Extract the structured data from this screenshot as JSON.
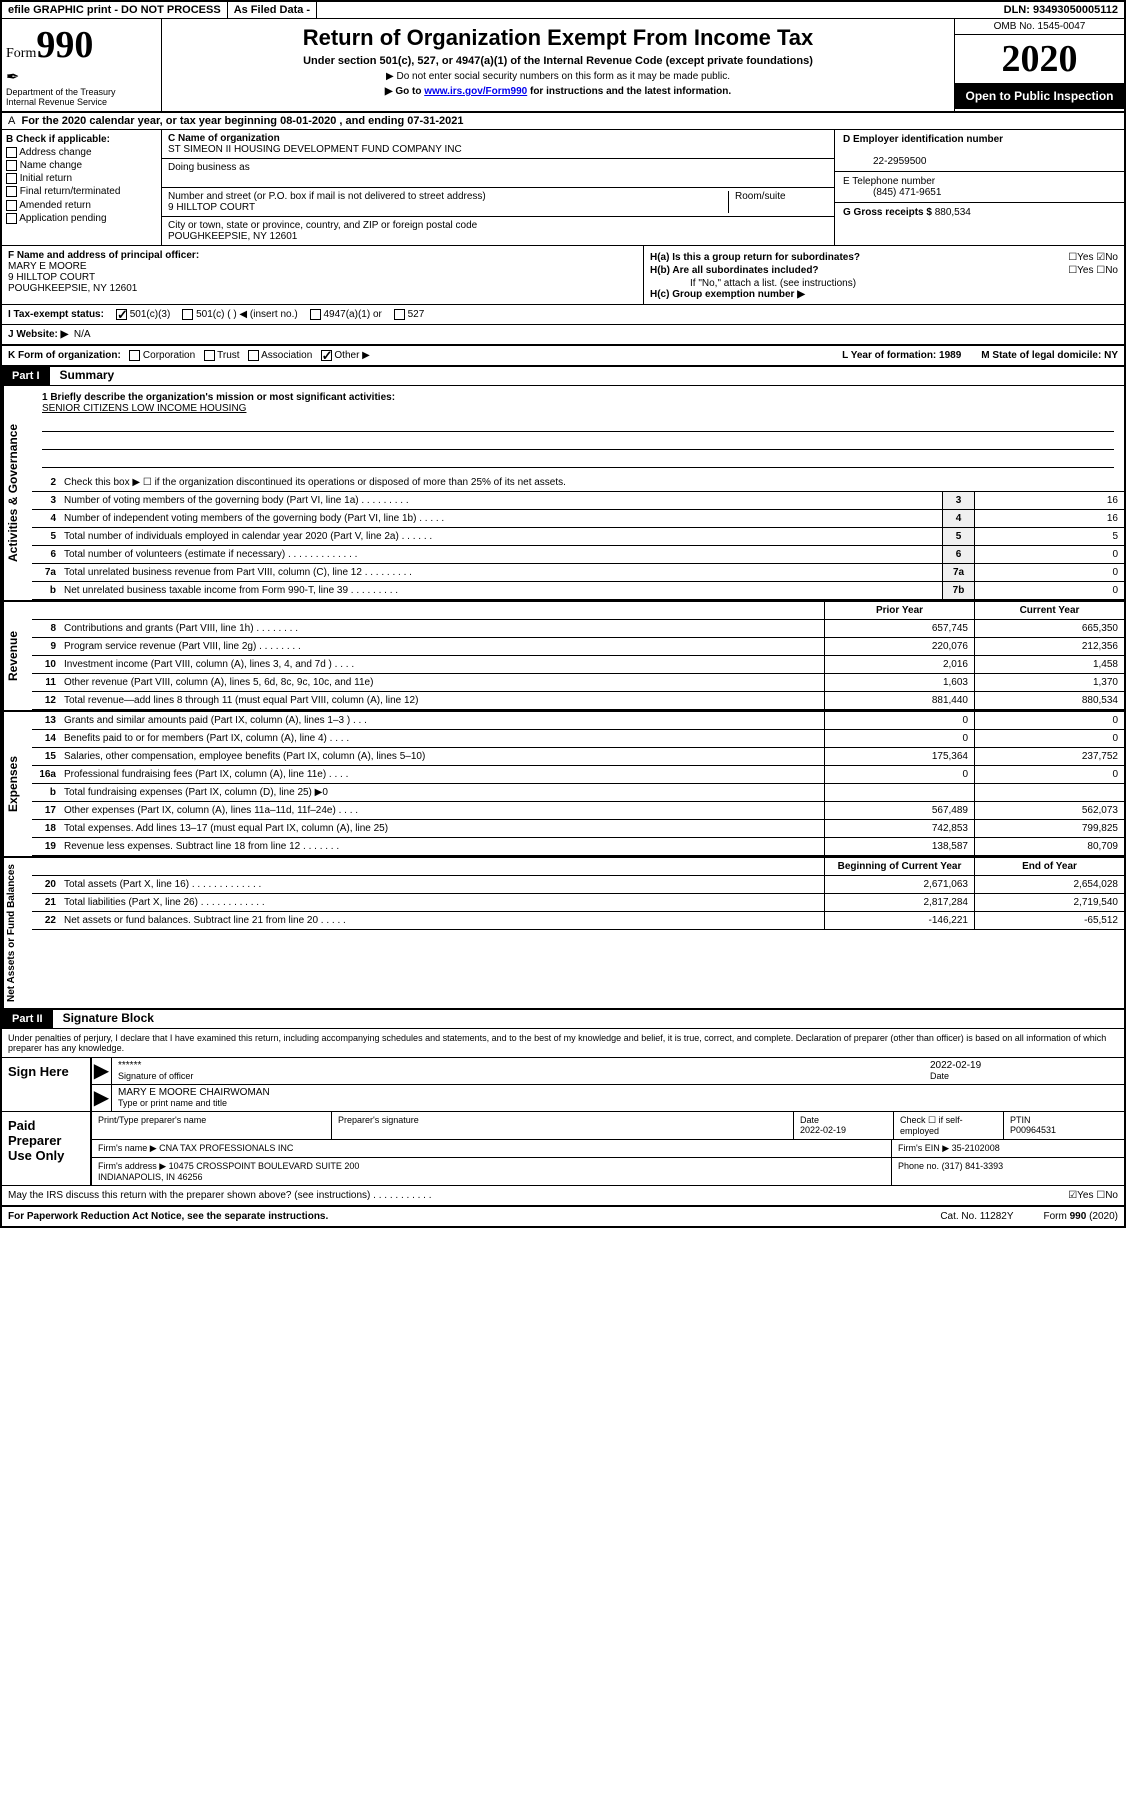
{
  "topbar": {
    "efile": "efile GRAPHIC print - DO NOT PROCESS",
    "asfiled": "As Filed Data -",
    "dln": "DLN: 93493050005112"
  },
  "header": {
    "formword": "Form",
    "formnum": "990",
    "dept": "Department of the Treasury",
    "irs": "Internal Revenue Service",
    "title": "Return of Organization Exempt From Income Tax",
    "sub": "Under section 501(c), 527, or 4947(a)(1) of the Internal Revenue Code (except private foundations)",
    "note1": "▶ Do not enter social security numbers on this form as it may be made public.",
    "note2_pre": "▶ Go to ",
    "note2_link": "www.irs.gov/Form990",
    "note2_post": " for instructions and the latest information.",
    "omb": "OMB No. 1545-0047",
    "year": "2020",
    "openpub": "Open to Public Inspection"
  },
  "rowA": {
    "label": "A",
    "text": "For the 2020 calendar year, or tax year beginning 08-01-2020   , and ending 07-31-2021"
  },
  "colB": {
    "label": "B Check if applicable:",
    "items": [
      "Address change",
      "Name change",
      "Initial return",
      "Final return/terminated",
      "Amended return",
      "Application pending"
    ]
  },
  "colC": {
    "nameLbl": "C Name of organization",
    "name": "ST SIMEON II HOUSING DEVELOPMENT FUND COMPANY INC",
    "dbaLbl": "Doing business as",
    "dba": "",
    "streetLbl": "Number and street (or P.O. box if mail is not delivered to street address)",
    "roomLbl": "Room/suite",
    "street": "9 HILLTOP COURT",
    "cityLbl": "City or town, state or province, country, and ZIP or foreign postal code",
    "city": "POUGHKEEPSIE, NY  12601"
  },
  "colD": {
    "einLbl": "D Employer identification number",
    "ein": "22-2959500",
    "telLbl": "E Telephone number",
    "tel": "(845) 471-9651",
    "grossLbl": "G Gross receipts $",
    "gross": "880,534"
  },
  "colF": {
    "lbl": "F  Name and address of principal officer:",
    "name": "MARY E MOORE",
    "addr1": "9 HILLTOP COURT",
    "addr2": "POUGHKEEPSIE, NY  12601"
  },
  "colH": {
    "ha": "H(a)  Is this a group return for subordinates?",
    "haYN": "☐Yes ☑No",
    "hb": "H(b)  Are all subordinates included?",
    "hbYN": "☐Yes ☐No",
    "hbNote": "If \"No,\" attach a list. (see instructions)",
    "hc": "H(c)  Group exemption number ▶"
  },
  "rowI": {
    "lbl": "I   Tax-exempt status:",
    "opts": [
      "501(c)(3)",
      "501(c) (  ) ◀ (insert no.)",
      "4947(a)(1) or",
      "527"
    ]
  },
  "rowJ": {
    "lbl": "J   Website: ▶",
    "val": "N/A"
  },
  "rowK": {
    "lbl": "K Form of organization:",
    "opts": [
      "Corporation",
      "Trust",
      "Association",
      "Other ▶"
    ],
    "L": "L Year of formation: 1989",
    "M": "M State of legal domicile: NY"
  },
  "partI": {
    "num": "Part I",
    "title": "Summary"
  },
  "mission": {
    "q": "1 Briefly describe the organization's mission or most significant activities:",
    "a": "SENIOR CITIZENS LOW INCOME HOUSING"
  },
  "side": {
    "gov": "Activities & Governance",
    "rev": "Revenue",
    "exp": "Expenses",
    "net": "Net Assets or Fund Balances"
  },
  "lines": {
    "l2": {
      "n": "2",
      "d": "Check this box ▶ ☐ if the organization discontinued its operations or disposed of more than 25% of its net assets."
    },
    "l3": {
      "n": "3",
      "d": "Number of voting members of the governing body (Part VI, line 1a)  .    .    .    .    .    .    .    .    .",
      "c": "3",
      "v": "16"
    },
    "l4": {
      "n": "4",
      "d": "Number of independent voting members of the governing body (Part VI, line 1b)  .    .    .    .    .",
      "c": "4",
      "v": "16"
    },
    "l5": {
      "n": "5",
      "d": "Total number of individuals employed in calendar year 2020 (Part V, line 2a)  .    .    .    .    .    .",
      "c": "5",
      "v": "5"
    },
    "l6": {
      "n": "6",
      "d": "Total number of volunteers (estimate if necessary)  .    .    .    .    .    .    .    .    .    .    .    .    .",
      "c": "6",
      "v": "0"
    },
    "l7a": {
      "n": "7a",
      "d": "Total unrelated business revenue from Part VIII, column (C), line 12  .    .    .    .    .    .    .    .    .",
      "c": "7a",
      "v": "0"
    },
    "l7b": {
      "n": "b",
      "d": "Net unrelated business taxable income from Form 990-T, line 39  .    .    .    .    .    .    .    .    .",
      "c": "7b",
      "v": "0"
    }
  },
  "revhdr": {
    "py": "Prior Year",
    "cy": "Current Year"
  },
  "rev": [
    {
      "n": "8",
      "d": "Contributions and grants (Part VIII, line 1h)  .    .    .    .    .    .    .    .",
      "p": "657,745",
      "c": "665,350"
    },
    {
      "n": "9",
      "d": "Program service revenue (Part VIII, line 2g)  .    .    .    .    .    .    .    .",
      "p": "220,076",
      "c": "212,356"
    },
    {
      "n": "10",
      "d": "Investment income (Part VIII, column (A), lines 3, 4, and 7d )  .    .    .    .",
      "p": "2,016",
      "c": "1,458"
    },
    {
      "n": "11",
      "d": "Other revenue (Part VIII, column (A), lines 5, 6d, 8c, 9c, 10c, and 11e)",
      "p": "1,603",
      "c": "1,370"
    },
    {
      "n": "12",
      "d": "Total revenue—add lines 8 through 11 (must equal Part VIII, column (A), line 12)",
      "p": "881,440",
      "c": "880,534"
    }
  ],
  "exp": [
    {
      "n": "13",
      "d": "Grants and similar amounts paid (Part IX, column (A), lines 1–3 )  .    .    .",
      "p": "0",
      "c": "0"
    },
    {
      "n": "14",
      "d": "Benefits paid to or for members (Part IX, column (A), line 4)  .    .    .    .",
      "p": "0",
      "c": "0"
    },
    {
      "n": "15",
      "d": "Salaries, other compensation, employee benefits (Part IX, column (A), lines 5–10)",
      "p": "175,364",
      "c": "237,752"
    },
    {
      "n": "16a",
      "d": "Professional fundraising fees (Part IX, column (A), line 11e)  .    .    .    .",
      "p": "0",
      "c": "0"
    },
    {
      "n": "b",
      "d": "Total fundraising expenses (Part IX, column (D), line 25) ▶0",
      "p": "",
      "c": ""
    },
    {
      "n": "17",
      "d": "Other expenses (Part IX, column (A), lines 11a–11d, 11f–24e)  .    .    .    .",
      "p": "567,489",
      "c": "562,073"
    },
    {
      "n": "18",
      "d": "Total expenses. Add lines 13–17 (must equal Part IX, column (A), line 25)",
      "p": "742,853",
      "c": "799,825"
    },
    {
      "n": "19",
      "d": "Revenue less expenses. Subtract line 18 from line 12 .    .    .    .    .    .    .",
      "p": "138,587",
      "c": "80,709"
    }
  ],
  "nethdr": {
    "py": "Beginning of Current Year",
    "cy": "End of Year"
  },
  "net": [
    {
      "n": "20",
      "d": "Total assets (Part X, line 16)  .    .    .    .    .    .    .    .    .    .    .    .    .",
      "p": "2,671,063",
      "c": "2,654,028"
    },
    {
      "n": "21",
      "d": "Total liabilities (Part X, line 26)  .    .    .    .    .    .    .    .    .    .    .    .",
      "p": "2,817,284",
      "c": "2,719,540"
    },
    {
      "n": "22",
      "d": "Net assets or fund balances. Subtract line 21 from line 20 .    .    .    .    .",
      "p": "-146,221",
      "c": "-65,512"
    }
  ],
  "partII": {
    "num": "Part II",
    "title": "Signature Block"
  },
  "sigtext": "Under penalties of perjury, I declare that I have examined this return, including accompanying schedules and statements, and to the best of my knowledge and belief, it is true, correct, and complete. Declaration of preparer (other than officer) is based on all information of which preparer has any knowledge.",
  "sign": {
    "lbl": "Sign Here",
    "stars": "******",
    "sigof": "Signature of officer",
    "date": "2022-02-19",
    "datelbl": "Date",
    "name": "MARY E MOORE CHAIRWOMAN",
    "namelbl": "Type or print name and title"
  },
  "paid": {
    "lbl": "Paid Preparer Use Only",
    "h1": "Print/Type preparer's name",
    "h2": "Preparer's signature",
    "h3": "Date",
    "h3v": "2022-02-19",
    "h4": "Check ☐ if self-employed",
    "h5": "PTIN",
    "h5v": "P00964531",
    "firmLbl": "Firm's name    ▶",
    "firm": "CNA TAX PROFESSIONALS INC",
    "feinLbl": "Firm's EIN ▶",
    "fein": "35-2102008",
    "addrLbl": "Firm's address ▶",
    "addr": "10475 CROSSPOINT BOULEVARD SUITE 200\nINDIANAPOLIS, IN  46256",
    "phLbl": "Phone no.",
    "ph": "(317) 841-3393"
  },
  "discuss": {
    "q": "May the IRS discuss this return with the preparer shown above? (see instructions)  .    .    .    .    .    .    .    .    .    .    .",
    "yn": "☑Yes ☐No"
  },
  "footer": {
    "l": "For Paperwork Reduction Act Notice, see the separate instructions.",
    "m": "Cat. No. 11282Y",
    "r": "Form 990 (2020)"
  }
}
